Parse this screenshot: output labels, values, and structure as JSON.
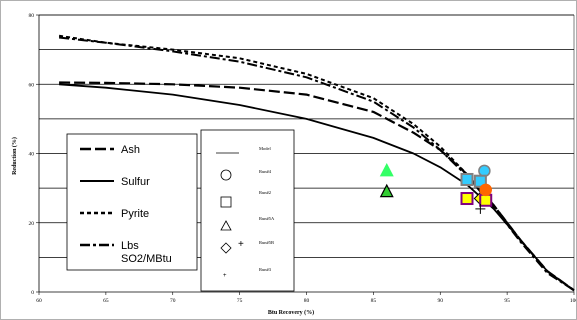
{
  "chart_data": {
    "type": "line",
    "xlabel": "Btu Recovery (%)",
    "ylabel": "Reduction (%)",
    "xlim": [
      60,
      100
    ],
    "ylim": [
      0,
      80
    ],
    "x_ticks": [
      "60",
      "65",
      "70",
      "75",
      "80",
      "85",
      "90",
      "95",
      "100"
    ],
    "y_ticks": [
      "0",
      "20",
      "40",
      "60",
      "80"
    ],
    "grid": "horizontal",
    "series": [
      {
        "name": "Ash",
        "style": "long-dash",
        "x": [
          61.5,
          65,
          70,
          75,
          80,
          85,
          88,
          90,
          92,
          94,
          96,
          98,
          100
        ],
        "y": [
          60.5,
          60.4,
          60.0,
          59.0,
          57.0,
          52.0,
          46.0,
          41.0,
          34.0,
          25.0,
          15.0,
          6.0,
          0.5
        ]
      },
      {
        "name": "Sulfur",
        "style": "solid",
        "x": [
          61.5,
          65,
          70,
          75,
          80,
          85,
          88,
          90,
          92,
          94,
          96,
          98,
          100
        ],
        "y": [
          60.0,
          59.0,
          57.0,
          54.0,
          50.0,
          44.5,
          40.0,
          36.0,
          31.0,
          24.0,
          15.0,
          6.0,
          0.5
        ]
      },
      {
        "name": "Pyrite",
        "style": "short-dash",
        "x": [
          61.5,
          65,
          70,
          75,
          80,
          85,
          88,
          90,
          92,
          94,
          96,
          98,
          100
        ],
        "y": [
          74.0,
          72.0,
          70.0,
          67.5,
          63.0,
          56.0,
          48.5,
          42.0,
          34.0,
          25.0,
          15.0,
          6.0,
          0.5
        ]
      },
      {
        "name": "Lbs SO2/MBtu",
        "style": "dash-dot",
        "x": [
          61.5,
          65,
          70,
          75,
          80,
          85,
          88,
          90,
          92,
          94,
          96,
          98,
          100
        ],
        "y": [
          73.5,
          72.0,
          69.5,
          66.5,
          62.0,
          55.0,
          47.5,
          41.0,
          33.5,
          24.5,
          14.5,
          5.5,
          0.5
        ]
      }
    ],
    "points": [
      {
        "name": "Run#4",
        "marker": "circle",
        "x": 93.3,
        "y": 35.0,
        "fill": "#33ccff",
        "stroke": "#808080"
      },
      {
        "name": "Run#2",
        "marker": "square",
        "x": 92.0,
        "y": 32.5,
        "fill": "#33ccff",
        "stroke": "#808080"
      },
      {
        "name": "Run#2",
        "marker": "square",
        "x": 93.0,
        "y": 32.0,
        "fill": "#33ccff",
        "stroke": "#808080"
      },
      {
        "name": "Run#5A",
        "marker": "triangle",
        "x": 86.0,
        "y": 35.0,
        "fill": "#33ff66",
        "stroke": "#33ff66"
      },
      {
        "name": "Run#5A",
        "marker": "triangle",
        "x": 86.0,
        "y": 29.0,
        "fill": "#33cc33",
        "stroke": "#000000"
      },
      {
        "name": "Run#5A",
        "marker": "triangle",
        "x": 93.2,
        "y": 28.0,
        "fill": "#ffcc00",
        "stroke": "#000000"
      },
      {
        "name": "Run#5B",
        "marker": "diamond",
        "x": 93.0,
        "y": 27.0,
        "fill": "#ffff00",
        "stroke": "#000000"
      },
      {
        "name": "Run#1",
        "marker": "square",
        "x": 92.0,
        "y": 27.0,
        "fill": "#ffff00",
        "stroke": "#800080"
      },
      {
        "name": "Run#1",
        "marker": "square",
        "x": 93.4,
        "y": 26.5,
        "fill": "#ffff00",
        "stroke": "#800080"
      },
      {
        "name": "Run#3",
        "marker": "circle",
        "x": 93.4,
        "y": 29.5,
        "fill": "#ff6600",
        "stroke": "#ff6600"
      },
      {
        "name": "Run#3",
        "marker": "plus",
        "x": 93.0,
        "y": 24.0,
        "fill": "none",
        "stroke": "#000000"
      }
    ],
    "legend1": [
      "Ash",
      "Sulfur",
      "Pyrite",
      "Lbs SO2/MBtu"
    ],
    "legend2": [
      "Model",
      "Run#4",
      "Run#2",
      "Run#5A",
      "Run#5B",
      "Run#3"
    ]
  }
}
